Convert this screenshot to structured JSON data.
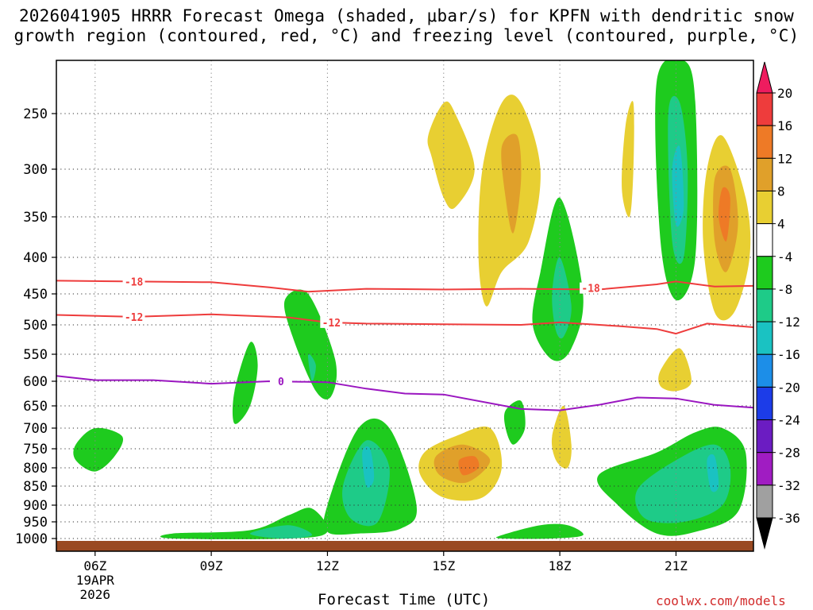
{
  "title": {
    "line1": "2026041905 HRRR Forecast Omega (shaded, μbar/s) for KPFN with dendritic snow",
    "line2": "growth region (contoured, red, °C) and freezing level (contoured, purple, °C)"
  },
  "footer": {
    "xlabel": "Forecast Time (UTC)",
    "credit": "coolwx.com/models"
  },
  "chart_data": {
    "type": "heatmap",
    "title": "2026041905 HRRR Forecast Omega (shaded, μbar/s) for KPFN with dendritic snow growth region (contoured, red, °C) and freezing level (contoured, purple, °C)",
    "xlabel": "Forecast Time (UTC)",
    "ylabel": "",
    "xlim": [
      5.0,
      23.0
    ],
    "ylim": [
      1000,
      200
    ],
    "x_ticks": [
      {
        "value": 6,
        "label": "06Z",
        "sub1": "19APR",
        "sub2": "2026"
      },
      {
        "value": 9,
        "label": "09Z"
      },
      {
        "value": 12,
        "label": "12Z"
      },
      {
        "value": 15,
        "label": "15Z"
      },
      {
        "value": 18,
        "label": "18Z"
      },
      {
        "value": 21,
        "label": "21Z"
      }
    ],
    "y_ticks": [
      250,
      300,
      350,
      400,
      450,
      500,
      550,
      600,
      650,
      700,
      750,
      800,
      850,
      900,
      950,
      1000
    ],
    "grid": true,
    "colorbar": {
      "levels": [
        20,
        16,
        12,
        8,
        4,
        -4,
        -8,
        -12,
        -16,
        -20,
        -24,
        -28,
        -32,
        -36
      ],
      "colors": [
        "#ee1c5f",
        "#ee3c3c",
        "#ee7a26",
        "#e0a02a",
        "#e8cf32",
        "#ffffff",
        "#1ecb1e",
        "#1ecb88",
        "#1ac2c2",
        "#1c8ee8",
        "#1c3ce8",
        "#6b1cc2",
        "#a01cc2",
        "#a0a0a0",
        "#000000"
      ]
    },
    "contours": [
      {
        "name": "dgz-top",
        "label": "-18",
        "color": "#ee3c3c",
        "x": [
          5.0,
          7.0,
          9.0,
          10.5,
          11.5,
          13.0,
          15.0,
          17.0,
          19.0,
          20.5,
          21.0,
          22.0,
          23.0
        ],
        "p": [
          432,
          433,
          434,
          441,
          447,
          443,
          444,
          443,
          444,
          437,
          433,
          440,
          439
        ]
      },
      {
        "name": "dgz-bottom",
        "label": "-12",
        "color": "#ee3c3c",
        "x": [
          5.0,
          7.0,
          9.0,
          11.0,
          12.0,
          13.0,
          15.0,
          17.0,
          18.0,
          19.5,
          20.5,
          21.0,
          21.8,
          23.0
        ],
        "p": [
          484,
          487,
          483,
          488,
          496,
          498,
          499,
          500,
          496,
          502,
          507,
          515,
          498,
          504
        ]
      },
      {
        "name": "freezing-level",
        "label": "0",
        "color": "#9a16c0",
        "x": [
          5.0,
          6.0,
          7.5,
          9.0,
          10.5,
          12.0,
          13.0,
          14.0,
          15.0,
          17.0,
          18.0,
          19.0,
          20.0,
          21.0,
          22.0,
          23.0
        ],
        "p": [
          590,
          598,
          598,
          605,
          600,
          602,
          615,
          625,
          627,
          657,
          660,
          648,
          633,
          635,
          648,
          654
        ]
      }
    ],
    "shaded": [
      {
        "value": 6,
        "band": "4 to 8",
        "x": [
          14.6,
          15.0,
          15.3,
          15.8,
          15.3,
          15.0,
          14.7
        ],
        "p": [
          270,
          240,
          250,
          300,
          340,
          330,
          290
        ]
      },
      {
        "value": 6,
        "band": "4 to 8",
        "x": [
          16.0,
          16.5,
          17.0,
          17.5,
          17.2,
          16.5,
          16.1,
          15.9
        ],
        "p": [
          300,
          240,
          240,
          300,
          380,
          420,
          470,
          400
        ]
      },
      {
        "value": 10,
        "band": "8 to 12",
        "x": [
          16.5,
          16.9,
          17.0,
          16.8,
          16.6
        ],
        "p": [
          280,
          270,
          310,
          370,
          330
        ]
      },
      {
        "value": 6,
        "band": "4 to 8",
        "x": [
          19.7,
          19.9,
          19.9,
          19.8,
          19.6
        ],
        "p": [
          260,
          240,
          300,
          350,
          320
        ]
      },
      {
        "value": 6,
        "band": "4 to 8",
        "x": [
          21.8,
          22.2,
          22.8,
          22.9,
          22.5,
          22.0,
          21.7
        ],
        "p": [
          300,
          270,
          330,
          400,
          480,
          480,
          380
        ]
      },
      {
        "value": 10,
        "band": "8 to 12",
        "x": [
          22.0,
          22.4,
          22.6,
          22.3,
          22.0
        ],
        "p": [
          310,
          300,
          360,
          420,
          380
        ]
      },
      {
        "value": 14,
        "band": "12 to 16",
        "x": [
          22.2,
          22.4,
          22.3,
          22.1
        ],
        "p": [
          320,
          330,
          380,
          350
        ]
      },
      {
        "value": -6,
        "band": "-4 to -8",
        "x": [
          20.5,
          21.2,
          21.5,
          21.5,
          21.0,
          20.6
        ],
        "p": [
          220,
          200,
          240,
          400,
          460,
          380
        ]
      },
      {
        "value": -10,
        "band": "-8 to -12",
        "x": [
          20.8,
          21.1,
          21.3,
          21.2,
          20.9
        ],
        "p": [
          250,
          240,
          300,
          400,
          380
        ]
      },
      {
        "value": -14,
        "band": "-12 to -16",
        "x": [
          20.9,
          21.1,
          21.2,
          21.0
        ],
        "p": [
          300,
          280,
          340,
          360
        ]
      },
      {
        "value": -6,
        "band": "-4 to -8",
        "x": [
          17.5,
          18.0,
          18.6,
          18.3,
          17.8,
          17.3
        ],
        "p": [
          420,
          330,
          450,
          540,
          560,
          500
        ]
      },
      {
        "value": -10,
        "band": "-8 to -12",
        "x": [
          17.8,
          18.0,
          18.3,
          18.1,
          17.9
        ],
        "p": [
          450,
          400,
          470,
          520,
          510
        ]
      },
      {
        "value": -6,
        "band": "-4 to -8",
        "x": [
          10.9,
          11.5,
          12.2,
          12.1,
          11.7,
          11.1
        ],
        "p": [
          460,
          450,
          560,
          630,
          620,
          520
        ]
      },
      {
        "value": -10,
        "band": "-8 to -12",
        "x": [
          11.5,
          11.7,
          11.6
        ],
        "p": [
          550,
          570,
          600
        ]
      },
      {
        "value": -6,
        "band": "-4 to -8",
        "x": [
          9.6,
          10.0,
          10.2,
          10.0,
          9.6
        ],
        "p": [
          620,
          530,
          570,
          650,
          690
        ]
      },
      {
        "value": -6,
        "band": "-4 to -8",
        "x": [
          5.5,
          6.0,
          6.7,
          6.5,
          6.0,
          5.5
        ],
        "p": [
          740,
          700,
          720,
          770,
          810,
          780
        ]
      },
      {
        "value": 6,
        "band": "4 to 8",
        "x": [
          14.5,
          15.3,
          16.2,
          16.5,
          16.0,
          15.0,
          14.4
        ],
        "p": [
          760,
          720,
          700,
          800,
          880,
          880,
          820
        ]
      },
      {
        "value": 10,
        "band": "8 to 12",
        "x": [
          14.8,
          15.5,
          16.2,
          15.6,
          14.9
        ],
        "p": [
          770,
          740,
          780,
          840,
          820
        ]
      },
      {
        "value": 14,
        "band": "12 to 16",
        "x": [
          15.4,
          15.8,
          15.9,
          15.5
        ],
        "p": [
          780,
          770,
          800,
          820
        ]
      },
      {
        "value": -6,
        "band": "-4 to -8",
        "x": [
          12.0,
          12.8,
          13.6,
          14.3,
          13.9,
          12.8,
          12.0
        ],
        "p": [
          900,
          700,
          700,
          900,
          970,
          985,
          980
        ]
      },
      {
        "value": -10,
        "band": "-8 to -12",
        "x": [
          12.4,
          13.0,
          13.6,
          13.3,
          12.6
        ],
        "p": [
          850,
          730,
          800,
          950,
          940
        ]
      },
      {
        "value": -14,
        "band": "-12 to -16",
        "x": [
          12.9,
          13.1,
          13.2,
          13.0
        ],
        "p": [
          760,
          750,
          830,
          850
        ]
      },
      {
        "value": -6,
        "band": "-4 to -8",
        "x": [
          8.0,
          10.0,
          11.0,
          11.6,
          12.0,
          11.0,
          8.0
        ],
        "p": [
          985,
          975,
          930,
          910,
          980,
          1000,
          1000
        ]
      },
      {
        "value": -10,
        "band": "-8 to -12",
        "x": [
          10.0,
          11.0,
          11.6,
          10.8
        ],
        "p": [
          985,
          960,
          990,
          1000
        ]
      },
      {
        "value": -6,
        "band": "-4 to -8",
        "x": [
          16.5,
          17.5,
          18.2,
          18.6,
          17.8,
          16.5
        ],
        "p": [
          990,
          960,
          960,
          990,
          1000,
          1000
        ]
      },
      {
        "value": -6,
        "band": "-4 to -8",
        "x": [
          19.0,
          20.5,
          21.5,
          22.2,
          22.8,
          22.6,
          21.5,
          20.5,
          19.5
        ],
        "p": [
          820,
          760,
          710,
          700,
          760,
          920,
          980,
          985,
          900
        ]
      },
      {
        "value": -10,
        "band": "-8 to -12",
        "x": [
          20.0,
          21.0,
          22.0,
          22.4,
          22.2,
          21.2,
          20.2
        ],
        "p": [
          860,
          780,
          740,
          800,
          900,
          950,
          940
        ]
      },
      {
        "value": -14,
        "band": "-12 to -16",
        "x": [
          21.8,
          22.0,
          22.1,
          21.9
        ],
        "p": [
          780,
          770,
          850,
          860
        ]
      },
      {
        "value": -6,
        "band": "-4 to -8",
        "x": [
          16.6,
          17.0,
          17.1,
          16.8,
          16.6
        ],
        "p": [
          660,
          640,
          700,
          740,
          700
        ]
      },
      {
        "value": 6,
        "band": "4 to 8",
        "x": [
          17.8,
          18.1,
          18.3,
          18.2,
          17.9
        ],
        "p": [
          720,
          650,
          740,
          800,
          780
        ]
      },
      {
        "value": 6,
        "band": "4 to 8",
        "x": [
          20.6,
          21.1,
          21.4,
          21.0,
          20.6
        ],
        "p": [
          580,
          540,
          600,
          620,
          610
        ]
      }
    ]
  }
}
